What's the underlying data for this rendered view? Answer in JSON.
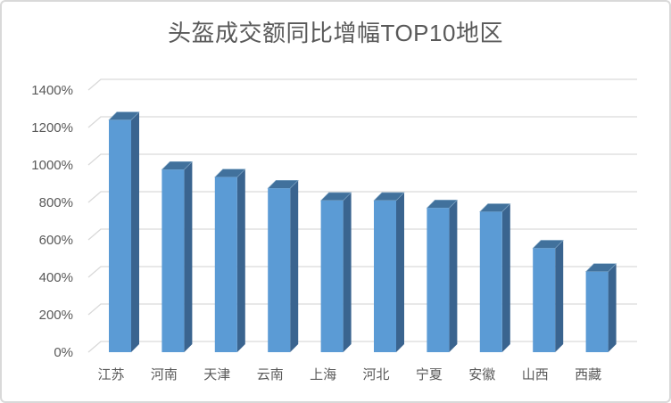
{
  "chart_data": {
    "type": "bar",
    "subtype": "3d-column",
    "title": "头盔成交额同比增幅TOP10地区",
    "categories": [
      "江苏",
      "河南",
      "天津",
      "云南",
      "上海",
      "河北",
      "宁夏",
      "安徽",
      "山西",
      "西藏"
    ],
    "values": [
      1240,
      975,
      935,
      875,
      810,
      810,
      770,
      750,
      555,
      430
    ],
    "unit": "%",
    "xlabel": "",
    "ylabel": "",
    "ylim": [
      0,
      1400
    ],
    "ytick_step": 200,
    "ytick_labels": [
      "0%",
      "200%",
      "400%",
      "600%",
      "800%",
      "1000%",
      "1200%",
      "1400%"
    ],
    "grid": true,
    "legend": false,
    "colors": {
      "bar_front": "#5B9BD5",
      "bar_top": "#41719C",
      "bar_side": "#3A648F",
      "gridline": "#D9D9D9",
      "axis_text": "#595959",
      "title_text": "#595959",
      "background": "#FFFFFF",
      "border": "#D9D9D9"
    }
  }
}
